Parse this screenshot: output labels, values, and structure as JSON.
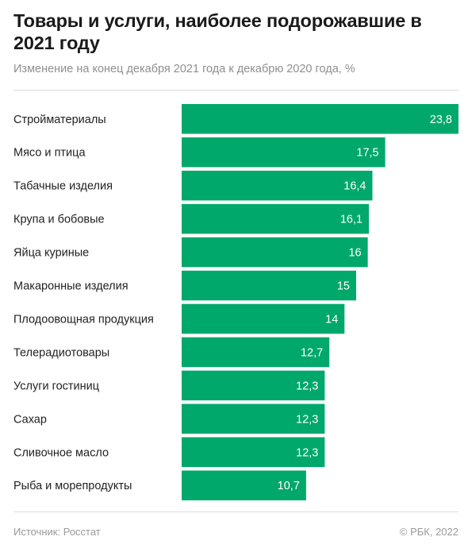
{
  "header": {
    "title": "Товары и услуги, наиболее подорожавшие в 2021 году",
    "subtitle": "Изменение на конец декабря 2021 года к декабрю 2020 года, %"
  },
  "footer": {
    "source": "Источник: Росстат",
    "copyright": "© РБК, 2022"
  },
  "chart_data": {
    "type": "bar",
    "orientation": "horizontal",
    "title": "Товары и услуги, наиболее подорожавшие в 2021 году",
    "subtitle": "Изменение на конец декабря 2021 года к декабрю 2020 года, %",
    "categories": [
      "Стройматериалы",
      "Мясо и птица",
      "Табачные изделия",
      "Крупа и бобовые",
      "Яйца куриные",
      "Макаронные изделия",
      "Плодоовощная продукция",
      "Телерадиотовары",
      "Услуги гостиниц",
      "Сахар",
      "Сливочное масло",
      "Рыба и морепродукты"
    ],
    "values": [
      23.8,
      17.5,
      16.4,
      16.1,
      16,
      15,
      14,
      12.7,
      12.3,
      12.3,
      12.3,
      10.7
    ],
    "value_labels": [
      "23,8",
      "17,5",
      "16,4",
      "16,1",
      "16",
      "15",
      "14",
      "12,7",
      "12,3",
      "12,3",
      "12,3",
      "10,7"
    ],
    "grid": false,
    "colors": {
      "bar": "#00a86b",
      "bar_label": "#ffffff"
    }
  }
}
